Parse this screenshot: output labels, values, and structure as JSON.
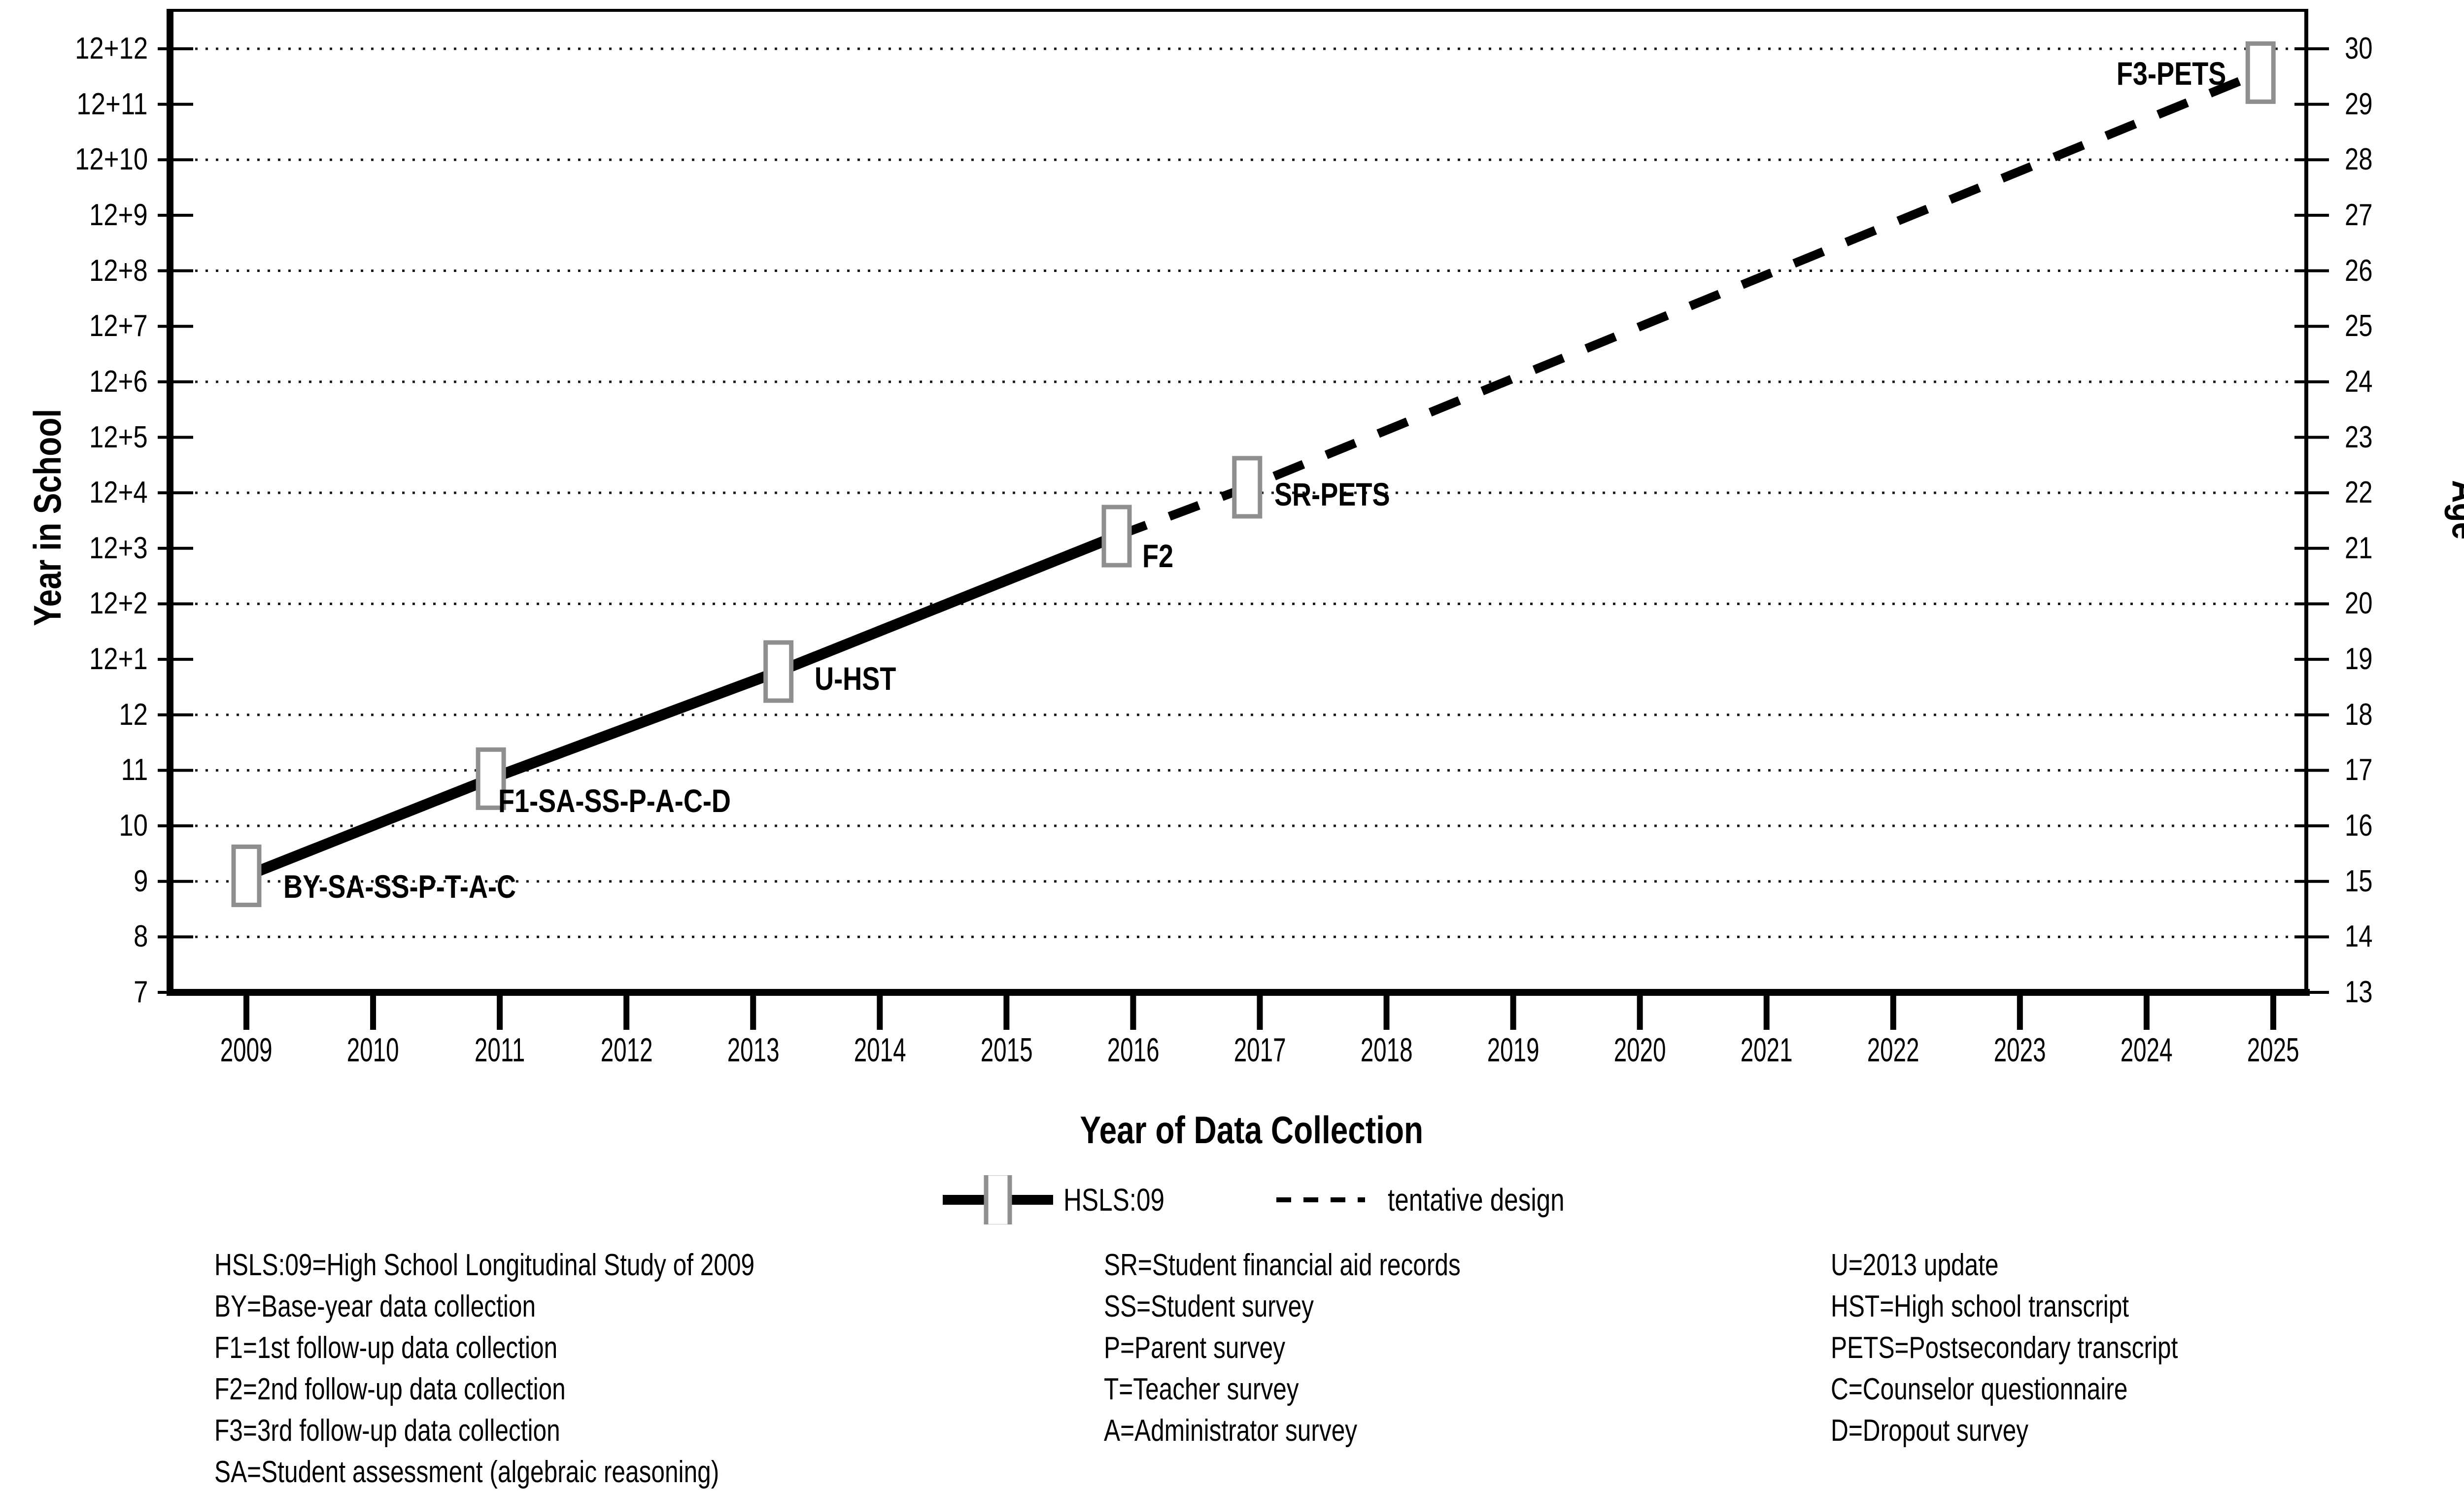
{
  "chart_data": {
    "type": "line",
    "title": "",
    "xlabel": "Year of Data Collection",
    "ylabel_left": "Year in School",
    "ylabel_right": "Age",
    "x_ticks": [
      "2009",
      "2010",
      "2011",
      "2012",
      "2013",
      "2014",
      "2015",
      "2016",
      "2017",
      "2018",
      "2019",
      "2020",
      "2021",
      "2022",
      "2023",
      "2024",
      "2025"
    ],
    "x_range": [
      2009,
      2025
    ],
    "y_ticks_left_bottom_to_top": [
      "7",
      "8",
      "9",
      "10",
      "11",
      "12",
      "12+1",
      "12+2",
      "12+3",
      "12+4",
      "12+5",
      "12+6",
      "12+7",
      "12+8",
      "12+9",
      "12+10",
      "12+11",
      "12+12"
    ],
    "y_ticks_right_bottom_to_top": [
      "13",
      "14",
      "15",
      "16",
      "17",
      "18",
      "19",
      "20",
      "21",
      "22",
      "23",
      "24",
      "25",
      "26",
      "27",
      "28",
      "29",
      "30"
    ],
    "grid": "dotted horizontal gridlines",
    "gridline_levels_school_scale": [
      8,
      9,
      10,
      11,
      12,
      14,
      16,
      18,
      20,
      22,
      24
    ],
    "points": [
      {
        "id": "BY",
        "year": 2009.0,
        "school_year": 9.1,
        "age": 15.1,
        "label": "BY-SA-SS-P-T-A-C",
        "label_side": "right"
      },
      {
        "id": "F1",
        "year": 2010.93,
        "school_year": 10.85,
        "age": 16.9,
        "label": "F1-SA-SS-P-A-C-D",
        "label_side": "below-right"
      },
      {
        "id": "U",
        "year": 2013.2,
        "school_year": 12.78,
        "age": 18.8,
        "label": "U-HST",
        "label_side": "right"
      },
      {
        "id": "F2",
        "year": 2015.87,
        "school_year": 15.22,
        "age": 21.2,
        "label": "F2",
        "label_side": "below-right"
      },
      {
        "id": "SR",
        "year": 2016.9,
        "school_year": 16.1,
        "age": 22.1,
        "label": "SR-PETS",
        "label_side": "right"
      },
      {
        "id": "F3",
        "year": 2024.9,
        "school_year": 23.57,
        "age": 29.6,
        "label": "F3-PETS",
        "label_side": "left"
      }
    ],
    "segments": {
      "solid_point_ids": [
        "BY",
        "F1",
        "U",
        "F2"
      ],
      "dashed_point_ids": [
        "F2",
        "SR",
        "F3"
      ]
    },
    "legend": [
      {
        "label": "HSLS:09",
        "style": "solid-line-with-square-marker"
      },
      {
        "label": "tentative design",
        "style": "dashed-line"
      }
    ],
    "legend_position": "below chart, centered",
    "colors": {
      "line": "#000000",
      "marker_fill": "#ffffff",
      "marker_border": "#8f8f8f",
      "grid": "#1a1a1a",
      "text": "#000000",
      "background": "#ffffff"
    }
  },
  "footnotes": {
    "column1": [
      "HSLS:09=High School Longitudinal Study of 2009",
      "BY=Base-year data collection",
      "F1=1st follow-up data collection",
      "F2=2nd follow-up data collection",
      "F3=3rd follow-up data collection",
      "SA=Student assessment (algebraic reasoning)"
    ],
    "column2": [
      "SR=Student financial aid records",
      "SS=Student survey",
      "P=Parent survey",
      "T=Teacher survey",
      "A=Administrator survey"
    ],
    "column3": [
      "U=2013 update",
      "HST=High school transcript",
      "PETS=Postsecondary transcript",
      "C=Counselor questionnaire",
      "D=Dropout survey"
    ]
  }
}
